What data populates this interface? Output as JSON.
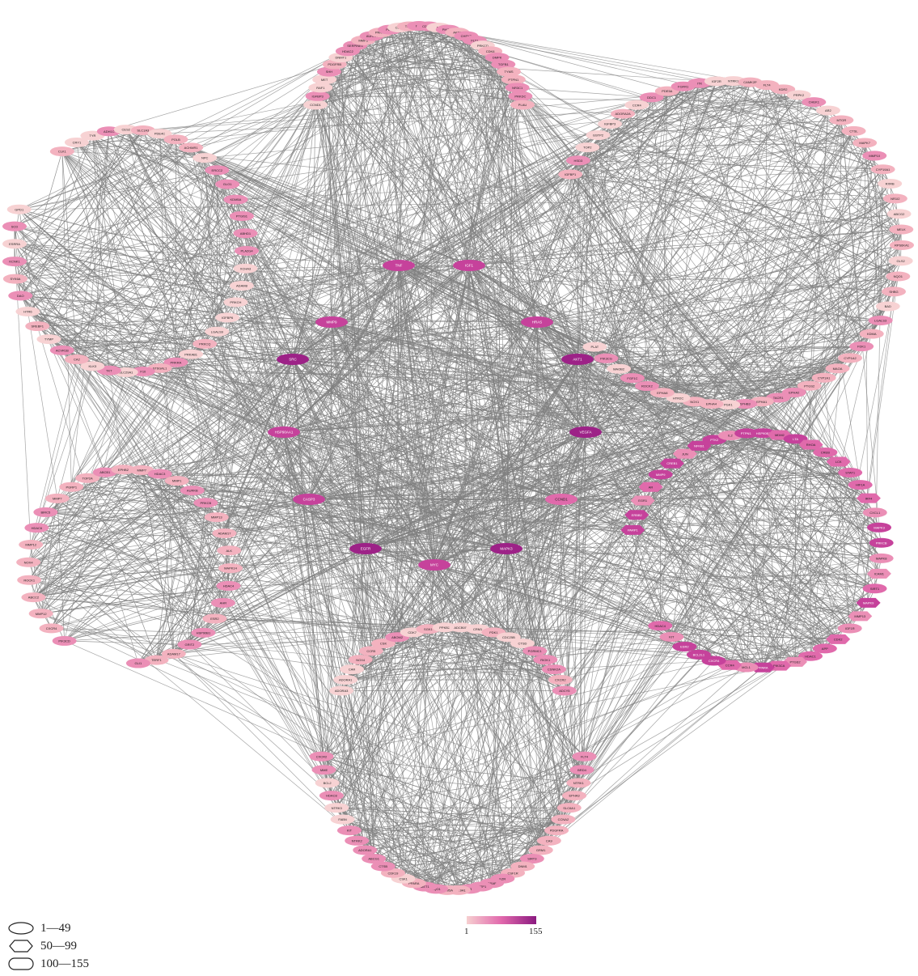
{
  "legend": {
    "shape_rows": [
      {
        "shape": "ellipse",
        "label": "1—49"
      },
      {
        "shape": "hexagon",
        "label": "50—99"
      },
      {
        "shape": "rounded-rect",
        "label": "100—155"
      }
    ],
    "colorbar": {
      "min_label": "1",
      "max_label": "155",
      "colors": [
        "#f6cfd0",
        "#e168ac",
        "#8b1a80"
      ]
    }
  },
  "colors": {
    "edge": "#808080",
    "node_text": "#222222"
  },
  "clusters": {
    "top": [
      "CCND1",
      "IGFBP3",
      "RAF1",
      "MET",
      "SHH",
      "PDGFRB",
      "DNMT1",
      "HDAC2",
      "SERPINE1",
      "MMP3",
      "AURKA",
      "PRKCA",
      "PLK1",
      "CDK9",
      "TERT",
      "PLG",
      "CDC25A",
      "F2",
      "PIK3CB",
      "AKT2",
      "CHEK2",
      "FLT1",
      "PRKCD",
      "CDK6",
      "DMPK",
      "TGFB1",
      "TYMS",
      "PTPN1",
      "NR3C1",
      "PRKDC",
      "PLAU"
    ],
    "topleft": [
      "ESR1",
      "PTK2",
      "MAOB",
      "PGR",
      "RXRA",
      "FOS",
      "GSK3B",
      "CFTR",
      "PPARG",
      "AR",
      "NOS2",
      "NOS3",
      "MMP2",
      "CCNA2",
      "CDK1",
      "ABCB1",
      "BCL2L1",
      "SELE",
      "SLC6A4",
      "CHRM1",
      "ALOX5",
      "HMOX1",
      "PTGS1",
      "ADRB2",
      "CHRM3",
      "GABRA1",
      "OPRM1",
      "DRD2",
      "AChE",
      "HTR2A",
      "SCN5A",
      "KCNH2"
    ],
    "topright": [
      "IGFBP1",
      "HSD3",
      "TOP2",
      "GSTP2",
      "IGFBP3",
      "ADORA2A",
      "CCR4",
      "DDC1",
      "PDE5A",
      "FGFR1",
      "ITK",
      "IGF2R",
      "NTRK1",
      "CAMK2B",
      "FLT4",
      "KDR2",
      "PRPK2",
      "CHEK1",
      "AR2",
      "MTOR",
      "CTSL",
      "MAPK7",
      "MMP10",
      "CYP19A1",
      "RXRB",
      "NR1I2",
      "ABCG2",
      "MELK",
      "RPS6KA1",
      "GLS2",
      "NQO1",
      "SHBG",
      "BAD",
      "LGALS3",
      "KDMA",
      "FDK1",
      "CYP1A2",
      "MAOA",
      "CYP1A1",
      "PTGS2",
      "EPHA2",
      "TACR1",
      "EPHA1",
      "EPHB3",
      "PGK1",
      "EPHA4",
      "NOX1",
      "HTR2C",
      "EPHA8",
      "ROCK2",
      "FGF1C",
      "MAOB2",
      "PIK3CG",
      "PLAT"
    ],
    "left": [
      "CLK1",
      "CRY1",
      "TYR",
      "ADH1C",
      "CES2",
      "SLC1A3",
      "PDE4C",
      "POLB",
      "ACHMR1",
      "NPC",
      "ERCC2",
      "GLO1",
      "KDM5A",
      "PTGIS1",
      "ABHD1",
      "PLA2G4",
      "XCHA3",
      "ADAM8",
      "PRKCH",
      "IGFBP6",
      "LGALS9",
      "PRKCQ",
      "PRKAB1",
      "PRKRA",
      "ST6GAL1",
      "F10",
      "SLC29A1",
      "TKT",
      "KLK3",
      "CA2",
      "ACVR1B",
      "TYMP",
      "SREBF1",
      "HTR6",
      "DAO",
      "SYK6A",
      "KCNK1",
      "ESRRA",
      "SCD",
      "GPD1"
    ],
    "center": [
      {
        "label": "TNF",
        "deg": 130
      },
      {
        "label": "IGF1",
        "deg": 128
      },
      {
        "label": "MMP9",
        "deg": 122
      },
      {
        "label": "HRAS",
        "deg": 118
      },
      {
        "label": "SRC",
        "deg": 145
      },
      {
        "label": "AKT1",
        "deg": 150
      },
      {
        "label": "HSP90AA1",
        "deg": 135
      },
      {
        "label": "VEGFA",
        "deg": 140
      },
      {
        "label": "CASP3",
        "deg": 132
      },
      {
        "label": "CCND1",
        "deg": 100
      },
      {
        "label": "EGFR",
        "deg": 155
      },
      {
        "label": "MAPK3",
        "deg": 148
      },
      {
        "label": "MYC",
        "deg": 110
      }
    ],
    "right": [
      "PARP1",
      "ERBB2",
      "EGR1",
      "AR",
      "MMP9",
      "CREB1",
      "JUN",
      "NFKB1",
      "PTK2",
      "IL2",
      "PTPN11",
      "HSP90B1",
      "MDM2",
      "LTA",
      "RHOA",
      "CREB",
      "LCK",
      "STAT1",
      "HIF1A",
      "IRF4",
      "CXCL1",
      "MAPK3",
      "PRKCB",
      "MAPK8",
      "ICAM1",
      "SIRT1",
      "MAPK9",
      "MMP13",
      "IGF1R",
      "CDK2",
      "APP",
      "HDAC1",
      "PTGS2",
      "PIK3CA",
      "PPARA",
      "MCL1",
      "CCR4",
      "CXCR4",
      "BCL2L1",
      "ESR2",
      "KIT",
      "HDAC4"
    ],
    "bottomleft": [
      "PIK3CD",
      "CXCR4",
      "MMP12",
      "ABCC2",
      "ROCK1",
      "NOX4",
      "MMP12",
      "HDAC6",
      "BIRC5",
      "MMP7",
      "PGRP1",
      "TOP2A",
      "ABCB1",
      "EPHB2",
      "MMP7",
      "HDAC3",
      "MMP1",
      "AURKB",
      "PRKCB",
      "MMP13",
      "ADAM17",
      "ALK",
      "MAPK14",
      "HDAC4",
      "AHR",
      "ESR2",
      "HSP90B1",
      "GRIT2",
      "ADAM17",
      "TERF1",
      "GLI1"
    ],
    "bottom": [
      "ADORA3",
      "ADORA1",
      "CAR",
      "NOX4",
      "CCR5",
      "CSK",
      "ABOM2",
      "CDK7",
      "SGK1",
      "PPKB2",
      "ADCB001",
      "CRM1",
      "PDK1",
      "CDC25B",
      "CTSD",
      "PGRMC1",
      "RIOK1",
      "CSNK2A",
      "CXCR2",
      "ADCY5"
    ],
    "bottomleft2": [
      "FLT4",
      "BRD4",
      "NTRK1",
      "EPHA3",
      "SLC6A1",
      "CCNA2",
      "PDGFRA",
      "CA9",
      "GRM1",
      "SIRT3",
      "DNM1",
      "CSF1R",
      "EZR",
      "BRAF",
      "GSTP1",
      "F3",
      "CYP19A1",
      "KDM5A",
      "NQO1",
      "MET1",
      "PPARA",
      "CSK1",
      "CDK19",
      "CTSB",
      "ABCG1",
      "ADORA1",
      "NTRK2",
      "KIT",
      "FABN",
      "NTRK3",
      "HDAC8",
      "BCL2",
      "MME",
      "CXCR2"
    ]
  }
}
